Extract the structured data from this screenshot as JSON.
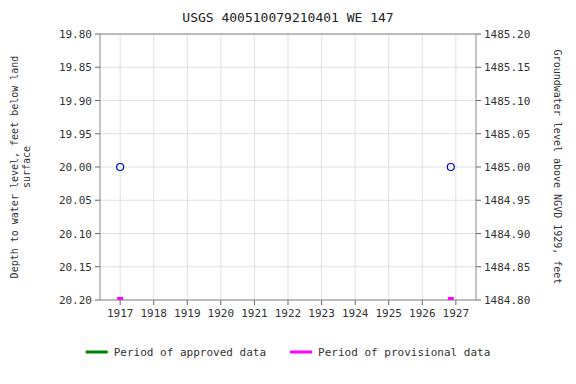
{
  "chart_data": {
    "type": "scatter",
    "title": "USGS 400510079210401 WE   147",
    "y_label": "Depth to water level, feet below land\nsurface",
    "y2_label": "Groundwater level above NGVD 1929, feet",
    "xlim": [
      1916.4,
      1927.6
    ],
    "xticks": [
      1917,
      1918,
      1919,
      1920,
      1921,
      1922,
      1923,
      1924,
      1925,
      1926,
      1927
    ],
    "ylim": [
      20.2,
      19.8
    ],
    "yticks": [
      {
        "value": 19.8,
        "label": "19.80"
      },
      {
        "value": 19.85,
        "label": "19.85"
      },
      {
        "value": 19.9,
        "label": "19.90"
      },
      {
        "value": 19.95,
        "label": "19.95"
      },
      {
        "value": 20.0,
        "label": "20.00"
      },
      {
        "value": 20.05,
        "label": "20.05"
      },
      {
        "value": 20.1,
        "label": "20.10"
      },
      {
        "value": 20.15,
        "label": "20.15"
      },
      {
        "value": 20.2,
        "label": "20.20"
      }
    ],
    "y2lim": [
      1484.8,
      1485.2
    ],
    "y2ticks": [
      {
        "value": 1485.2,
        "label": "1485.20"
      },
      {
        "value": 1485.15,
        "label": "1485.15"
      },
      {
        "value": 1485.1,
        "label": "1485.10"
      },
      {
        "value": 1485.05,
        "label": "1485.05"
      },
      {
        "value": 1485.0,
        "label": "1485.00"
      },
      {
        "value": 1484.95,
        "label": "1484.95"
      },
      {
        "value": 1484.9,
        "label": "1484.90"
      },
      {
        "value": 1484.85,
        "label": "1484.85"
      },
      {
        "value": 1484.8,
        "label": "1484.80"
      }
    ],
    "grid": true,
    "legend": "bottom",
    "series": [
      {
        "type": "scatter",
        "marker": "circle",
        "color": "#0000cd",
        "x": [
          1917.0,
          1926.85
        ],
        "values": [
          20.0,
          20.0
        ]
      },
      {
        "type": "scatter",
        "marker": "square",
        "color": "#ff00ff",
        "name": "Period of provisional data",
        "x": [
          1917.0,
          1926.85
        ],
        "values": [
          20.2,
          20.2
        ]
      },
      {
        "type": "line",
        "color": "#008000",
        "name": "Period of approved data",
        "x": [],
        "values": []
      }
    ]
  }
}
